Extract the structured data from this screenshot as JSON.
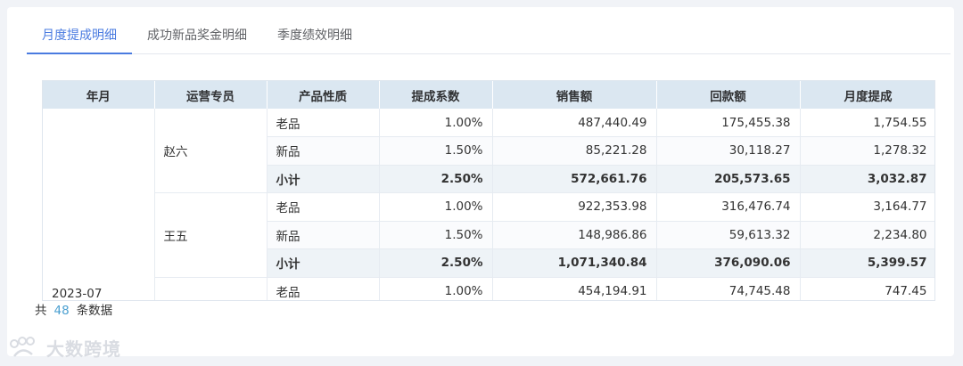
{
  "tabs": [
    {
      "label": "月度提成明细",
      "active": true
    },
    {
      "label": "成功新品奖金明细",
      "active": false
    },
    {
      "label": "季度绩效明细",
      "active": false
    }
  ],
  "table": {
    "headers": [
      "年月",
      "运营专员",
      "产品性质",
      "提成系数",
      "销售额",
      "回款额",
      "月度提成"
    ],
    "month": "2023-07",
    "groups": [
      {
        "person": "赵六",
        "rows": [
          {
            "type": "老品",
            "rate": "1.00%",
            "sales": "487,440.49",
            "received": "175,455.38",
            "commission": "1,754.55"
          },
          {
            "type": "新品",
            "rate": "1.50%",
            "sales": "85,221.28",
            "received": "30,118.27",
            "commission": "1,278.32"
          },
          {
            "type": "小计",
            "rate": "2.50%",
            "sales": "572,661.76",
            "received": "205,573.65",
            "commission": "3,032.87",
            "subtotal": true
          }
        ]
      },
      {
        "person": "王五",
        "rows": [
          {
            "type": "老品",
            "rate": "1.00%",
            "sales": "922,353.98",
            "received": "316,476.74",
            "commission": "3,164.77"
          },
          {
            "type": "新品",
            "rate": "1.50%",
            "sales": "148,986.86",
            "received": "59,613.32",
            "commission": "2,234.80"
          },
          {
            "type": "小计",
            "rate": "2.50%",
            "sales": "1,071,340.84",
            "received": "376,090.06",
            "commission": "5,399.57",
            "subtotal": true
          }
        ]
      },
      {
        "person": "",
        "rows": [
          {
            "type": "老品",
            "rate": "1.00%",
            "sales": "454,194.91",
            "received": "74,745.48",
            "commission": "747.45"
          }
        ]
      }
    ]
  },
  "footer": {
    "prefix": "共",
    "count": "48",
    "suffix": "条数据"
  },
  "watermark": {
    "text": "大数跨境",
    "icon": "paw-logo-icon"
  }
}
